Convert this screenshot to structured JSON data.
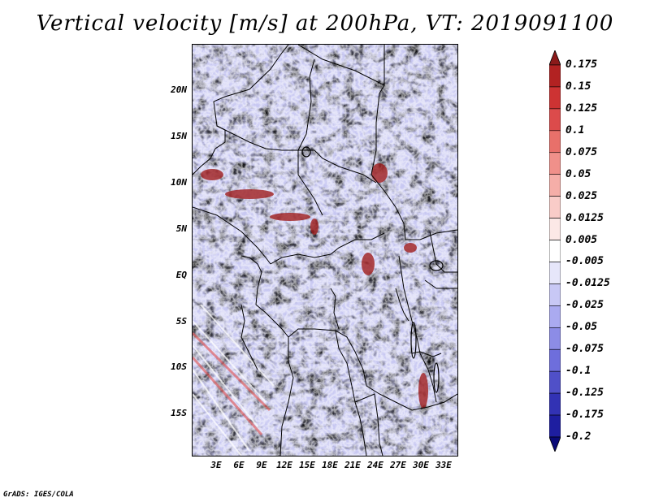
{
  "title": "Vertical velocity [m/s] at 200hPa, VT: 2019091100",
  "lat_labels": [
    "20N",
    "15N",
    "10N",
    "5N",
    "EQ",
    "5S",
    "10S",
    "15S"
  ],
  "lon_labels": [
    "3E",
    "6E",
    "9E",
    "12E",
    "15E",
    "18E",
    "21E",
    "24E",
    "27E",
    "30E",
    "33E"
  ],
  "colorbar": {
    "labels": [
      "0.175",
      "0.15",
      "0.125",
      "0.1",
      "0.075",
      "0.05",
      "0.025",
      "0.0125",
      "0.005",
      "-0.005",
      "-0.0125",
      "-0.025",
      "-0.05",
      "-0.075",
      "-0.1",
      "-0.125",
      "-0.175",
      "-0.2"
    ],
    "colors": [
      "#8b1a1a",
      "#b22222",
      "#cd3333",
      "#dc4b4b",
      "#e8706a",
      "#f0908a",
      "#f5aea8",
      "#f9ccc8",
      "#fce8e6",
      "#ffffff",
      "#e6e6fa",
      "#c8c8f5",
      "#aaaaf0",
      "#8c8ce6",
      "#6e6edc",
      "#5050c8",
      "#3232b4",
      "#1e1ea0",
      "#0a0a78"
    ]
  },
  "footer": "GrADS: IGES/COLA"
}
